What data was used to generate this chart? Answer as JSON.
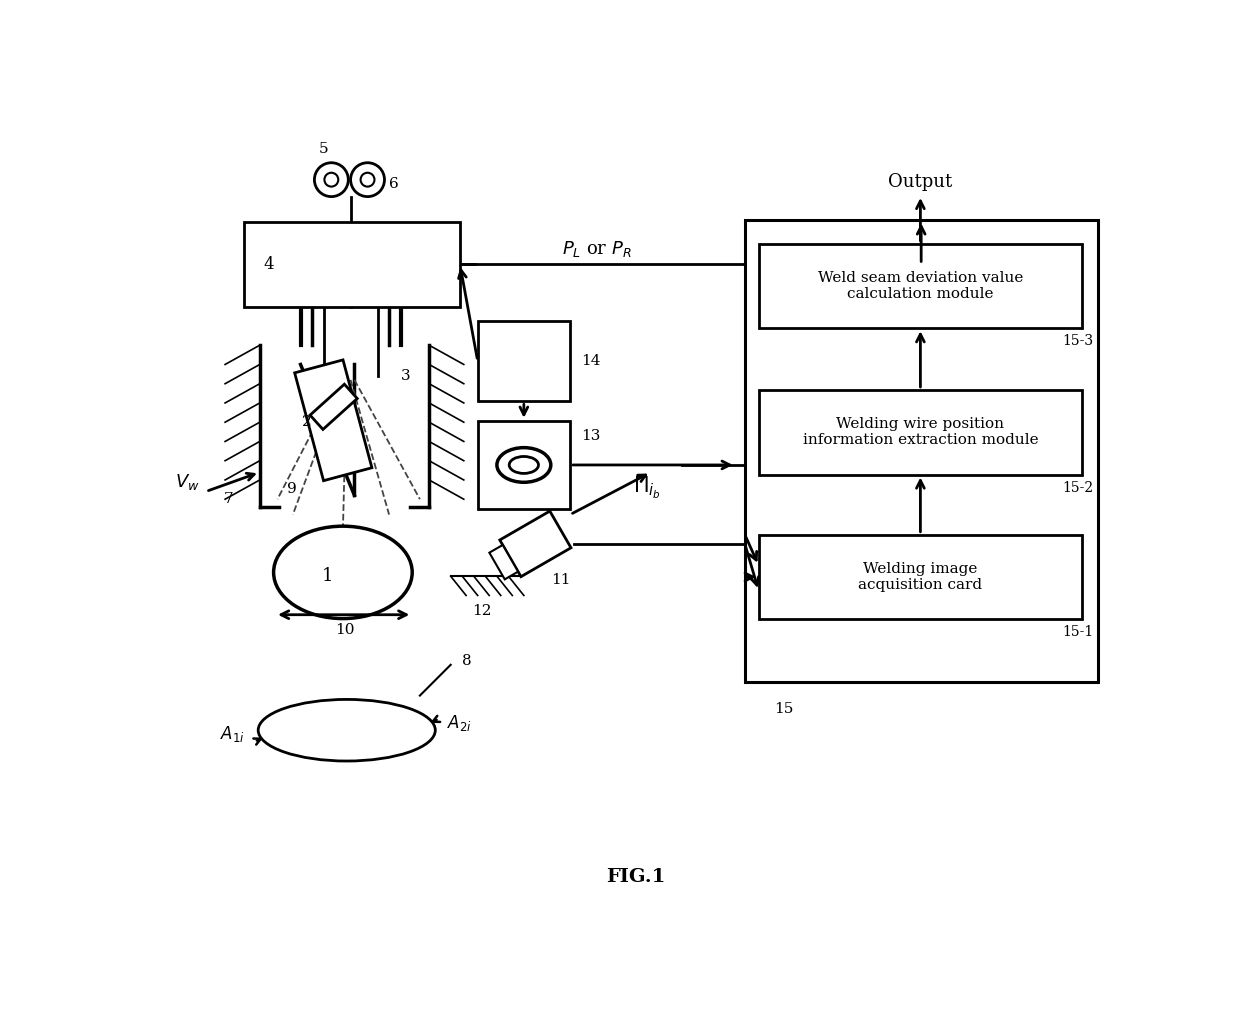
{
  "fig_label": "FIG.1",
  "output_label": "Output",
  "PL_PR": "$P_L$ or $P_R$",
  "ib_sym": "$\\mathsf{\\Pi}_{i_b}$",
  "Vw_sym": "$\\boldsymbol{V_w}$",
  "A1i": "$A_{1i}$",
  "A2i": "$A_{2i}$",
  "mod1": "Welding image\nacquisition card",
  "mod2": "Welding wire position\ninformation extraction module",
  "mod3": "Weld seam deviation value\ncalculation module",
  "lbl1": "1",
  "lbl2": "2",
  "lbl3": "3",
  "lbl4": "4",
  "lbl5": "5",
  "lbl6": "6",
  "lbl7": "7",
  "lbl8": "8",
  "lbl9": "9",
  "lbl10": "10",
  "lbl11": "11",
  "lbl12": "12",
  "lbl13": "13",
  "lbl14": "14",
  "lbl15": "15",
  "lbl15_1": "15-1",
  "lbl15_2": "15-2",
  "lbl15_3": "15-3"
}
